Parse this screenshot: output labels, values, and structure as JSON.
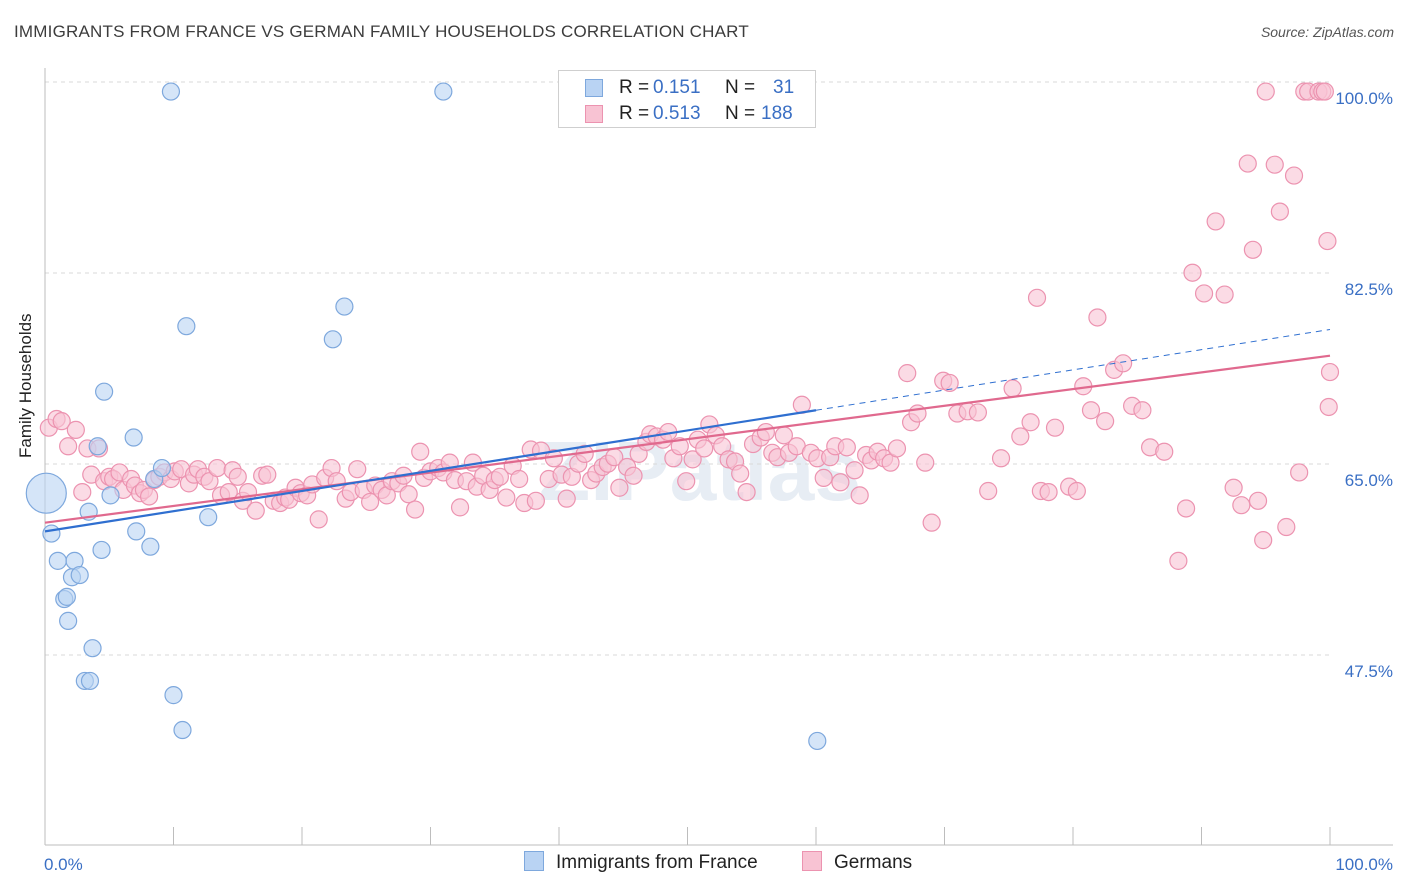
{
  "title": "IMMIGRANTS FROM FRANCE VS GERMAN FAMILY HOUSEHOLDS CORRELATION CHART",
  "source": "Source: ZipAtlas.com",
  "watermark": "ZIPatlas",
  "legend": {
    "r_label": "R =",
    "n_label": "N =",
    "rows": [
      {
        "r": "0.151",
        "n": "31"
      },
      {
        "r": "0.513",
        "n": "188"
      }
    ]
  },
  "chart_data": {
    "type": "scatter",
    "title": "IMMIGRANTS FROM FRANCE VS GERMAN FAMILY HOUSEHOLDS CORRELATION CHART",
    "xlabel": "",
    "ylabel": "Family Households",
    "xlim": [
      0,
      100
    ],
    "ylim": [
      30,
      101.5
    ],
    "x_tick_labels": [
      "0.0%",
      "100.0%"
    ],
    "y_ticks": [
      47.5,
      65.0,
      82.5,
      100.0
    ],
    "y_tick_labels": [
      "47.5%",
      "65.0%",
      "82.5%",
      "100.0%"
    ],
    "grid": true,
    "legend_position": "top-center",
    "colors": {
      "france_fill": "#b9d3f3",
      "france_stroke": "#7ea8dd",
      "france_line": "#2f6fd0",
      "german_fill": "#f8c3d3",
      "german_stroke": "#ec93b0",
      "german_line": "#e0698e",
      "tick_text": "#3a6fc4",
      "grid": "#d9d9d9"
    },
    "series": [
      {
        "name": "Immigrants from France",
        "r": 0.151,
        "n": 31,
        "trend": {
          "x0": 0,
          "y0": 60.2,
          "x1": 60,
          "y1": 71.3,
          "dash_to_x": 100,
          "dash_to_y": 78.7
        },
        "points": [
          [
            0.1,
            63.7
          ],
          [
            0.5,
            60.0
          ],
          [
            1.0,
            57.5
          ],
          [
            1.5,
            54.0
          ],
          [
            1.7,
            54.2
          ],
          [
            1.8,
            52.0
          ],
          [
            2.1,
            56.0
          ],
          [
            2.3,
            57.5
          ],
          [
            2.7,
            56.2
          ],
          [
            3.1,
            46.5
          ],
          [
            3.5,
            46.5
          ],
          [
            3.4,
            62.0
          ],
          [
            3.7,
            49.5
          ],
          [
            4.1,
            68.0
          ],
          [
            4.4,
            58.5
          ],
          [
            4.6,
            73.0
          ],
          [
            5.1,
            63.5
          ],
          [
            6.9,
            68.8
          ],
          [
            7.1,
            60.2
          ],
          [
            8.2,
            58.8
          ],
          [
            8.5,
            65.0
          ],
          [
            9.1,
            66.0
          ],
          [
            9.8,
            100.5
          ],
          [
            10.0,
            45.2
          ],
          [
            10.7,
            42.0
          ],
          [
            11.0,
            79.0
          ],
          [
            12.7,
            61.5
          ],
          [
            22.4,
            77.8
          ],
          [
            23.3,
            80.8
          ],
          [
            31.0,
            100.5
          ],
          [
            60.1,
            41.0
          ]
        ]
      },
      {
        "name": "Germans",
        "r": 0.513,
        "n": 188,
        "trend": {
          "x0": 0,
          "y0": 61.0,
          "x1": 100,
          "y1": 76.3
        },
        "points": [
          [
            0.3,
            69.7
          ],
          [
            0.9,
            70.5
          ],
          [
            1.3,
            70.3
          ],
          [
            1.8,
            68.0
          ],
          [
            2.4,
            69.5
          ],
          [
            2.9,
            63.8
          ],
          [
            3.3,
            67.8
          ],
          [
            3.6,
            65.4
          ],
          [
            4.2,
            67.8
          ],
          [
            4.6,
            64.8
          ],
          [
            5.0,
            65.2
          ],
          [
            5.3,
            65.0
          ],
          [
            5.8,
            65.6
          ],
          [
            6.1,
            64.0
          ],
          [
            6.7,
            65.0
          ],
          [
            7.0,
            64.4
          ],
          [
            7.4,
            63.7
          ],
          [
            7.7,
            64.0
          ],
          [
            8.1,
            63.4
          ],
          [
            8.5,
            64.9
          ],
          [
            8.9,
            65.2
          ],
          [
            9.3,
            65.6
          ],
          [
            9.8,
            65.0
          ],
          [
            10.1,
            65.7
          ],
          [
            10.6,
            65.9
          ],
          [
            11.2,
            64.6
          ],
          [
            11.6,
            65.4
          ],
          [
            11.9,
            65.9
          ],
          [
            12.4,
            65.2
          ],
          [
            12.8,
            64.8
          ],
          [
            13.4,
            66.0
          ],
          [
            13.7,
            63.5
          ],
          [
            14.3,
            63.8
          ],
          [
            14.6,
            65.8
          ],
          [
            15.0,
            65.2
          ],
          [
            15.4,
            63.0
          ],
          [
            15.8,
            63.8
          ],
          [
            16.4,
            62.1
          ],
          [
            16.9,
            65.3
          ],
          [
            17.3,
            65.4
          ],
          [
            17.8,
            63.0
          ],
          [
            18.3,
            62.8
          ],
          [
            18.7,
            63.3
          ],
          [
            19.0,
            63.1
          ],
          [
            19.5,
            64.2
          ],
          [
            19.9,
            63.7
          ],
          [
            20.4,
            63.5
          ],
          [
            20.8,
            64.5
          ],
          [
            21.3,
            61.3
          ],
          [
            21.8,
            65.1
          ],
          [
            22.3,
            66.0
          ],
          [
            22.7,
            64.8
          ],
          [
            23.4,
            63.2
          ],
          [
            23.8,
            63.8
          ],
          [
            24.3,
            65.9
          ],
          [
            24.8,
            64.0
          ],
          [
            25.3,
            62.9
          ],
          [
            25.7,
            64.4
          ],
          [
            26.2,
            64.0
          ],
          [
            26.6,
            63.5
          ],
          [
            27.0,
            64.8
          ],
          [
            27.5,
            64.6
          ],
          [
            27.9,
            65.3
          ],
          [
            28.3,
            63.6
          ],
          [
            28.8,
            62.2
          ],
          [
            29.2,
            67.5
          ],
          [
            29.5,
            65.1
          ],
          [
            30.0,
            65.7
          ],
          [
            30.6,
            66.0
          ],
          [
            31.0,
            65.6
          ],
          [
            31.5,
            66.5
          ],
          [
            31.9,
            64.9
          ],
          [
            32.3,
            62.4
          ],
          [
            32.8,
            64.8
          ],
          [
            33.3,
            66.5
          ],
          [
            33.6,
            64.3
          ],
          [
            34.1,
            65.3
          ],
          [
            34.6,
            64.0
          ],
          [
            35.0,
            64.9
          ],
          [
            35.4,
            65.2
          ],
          [
            35.9,
            63.3
          ],
          [
            36.4,
            66.2
          ],
          [
            36.9,
            65.0
          ],
          [
            37.3,
            62.8
          ],
          [
            37.8,
            67.7
          ],
          [
            38.2,
            63.0
          ],
          [
            38.6,
            67.6
          ],
          [
            39.2,
            65.0
          ],
          [
            39.6,
            66.9
          ],
          [
            40.2,
            65.4
          ],
          [
            40.6,
            63.2
          ],
          [
            41.0,
            65.2
          ],
          [
            41.5,
            66.4
          ],
          [
            42.0,
            67.3
          ],
          [
            42.5,
            64.9
          ],
          [
            42.9,
            65.5
          ],
          [
            43.4,
            66.1
          ],
          [
            43.8,
            66.4
          ],
          [
            44.3,
            67.0
          ],
          [
            44.7,
            64.2
          ],
          [
            45.3,
            66.1
          ],
          [
            45.8,
            65.3
          ],
          [
            46.2,
            67.3
          ],
          [
            46.8,
            68.4
          ],
          [
            47.1,
            69.1
          ],
          [
            47.6,
            68.9
          ],
          [
            48.1,
            68.6
          ],
          [
            48.5,
            69.3
          ],
          [
            48.9,
            66.9
          ],
          [
            49.4,
            68.0
          ],
          [
            49.9,
            64.8
          ],
          [
            50.4,
            66.8
          ],
          [
            50.8,
            68.6
          ],
          [
            51.3,
            67.8
          ],
          [
            51.7,
            70.0
          ],
          [
            52.2,
            69.0
          ],
          [
            52.7,
            68.0
          ],
          [
            53.2,
            66.8
          ],
          [
            53.7,
            66.6
          ],
          [
            54.1,
            65.5
          ],
          [
            54.6,
            63.8
          ],
          [
            55.1,
            68.2
          ],
          [
            55.7,
            68.8
          ],
          [
            56.1,
            69.3
          ],
          [
            56.6,
            67.4
          ],
          [
            57.0,
            67.0
          ],
          [
            57.5,
            69.0
          ],
          [
            57.9,
            67.4
          ],
          [
            58.5,
            68.0
          ],
          [
            58.9,
            71.8
          ],
          [
            59.6,
            67.4
          ],
          [
            60.1,
            66.9
          ],
          [
            60.6,
            65.1
          ],
          [
            61.1,
            67.0
          ],
          [
            61.5,
            68.0
          ],
          [
            61.9,
            64.7
          ],
          [
            62.4,
            67.9
          ],
          [
            63.0,
            65.8
          ],
          [
            63.4,
            63.5
          ],
          [
            63.9,
            67.2
          ],
          [
            64.3,
            66.7
          ],
          [
            64.8,
            67.5
          ],
          [
            65.3,
            66.9
          ],
          [
            65.8,
            66.5
          ],
          [
            66.3,
            67.8
          ],
          [
            67.1,
            74.7
          ],
          [
            67.4,
            70.2
          ],
          [
            67.9,
            71.0
          ],
          [
            68.5,
            66.5
          ],
          [
            69.0,
            61.0
          ],
          [
            69.9,
            74.0
          ],
          [
            70.4,
            73.8
          ],
          [
            71.0,
            71.0
          ],
          [
            71.8,
            71.2
          ],
          [
            72.6,
            71.1
          ],
          [
            73.4,
            63.9
          ],
          [
            74.4,
            66.9
          ],
          [
            75.3,
            73.3
          ],
          [
            75.9,
            68.9
          ],
          [
            76.7,
            70.2
          ],
          [
            77.2,
            81.6
          ],
          [
            77.5,
            63.9
          ],
          [
            78.1,
            63.8
          ],
          [
            78.6,
            69.7
          ],
          [
            79.7,
            64.3
          ],
          [
            80.3,
            63.9
          ],
          [
            80.8,
            73.5
          ],
          [
            81.4,
            71.3
          ],
          [
            81.9,
            79.8
          ],
          [
            82.5,
            70.3
          ],
          [
            83.2,
            75.0
          ],
          [
            83.9,
            75.6
          ],
          [
            84.6,
            71.7
          ],
          [
            85.4,
            71.3
          ],
          [
            86.0,
            67.9
          ],
          [
            87.1,
            67.5
          ],
          [
            88.2,
            57.5
          ],
          [
            88.8,
            62.3
          ],
          [
            89.3,
            83.9
          ],
          [
            90.2,
            82.0
          ],
          [
            91.1,
            88.6
          ],
          [
            91.8,
            81.9
          ],
          [
            92.5,
            64.2
          ],
          [
            93.1,
            62.6
          ],
          [
            93.6,
            93.9
          ],
          [
            94.0,
            86.0
          ],
          [
            94.4,
            63.0
          ],
          [
            94.8,
            59.4
          ],
          [
            95.0,
            100.5
          ],
          [
            95.7,
            93.8
          ],
          [
            96.1,
            89.5
          ],
          [
            96.6,
            60.6
          ],
          [
            97.2,
            92.8
          ],
          [
            97.6,
            65.6
          ],
          [
            98.0,
            100.5
          ],
          [
            98.3,
            100.5
          ],
          [
            99.1,
            100.5
          ],
          [
            99.4,
            100.5
          ],
          [
            99.6,
            100.5
          ],
          [
            99.8,
            86.8
          ],
          [
            99.9,
            71.6
          ],
          [
            100.0,
            74.8
          ]
        ]
      }
    ]
  },
  "bottom_legend": [
    {
      "label": "Immigrants from France"
    },
    {
      "label": "Germans"
    }
  ]
}
